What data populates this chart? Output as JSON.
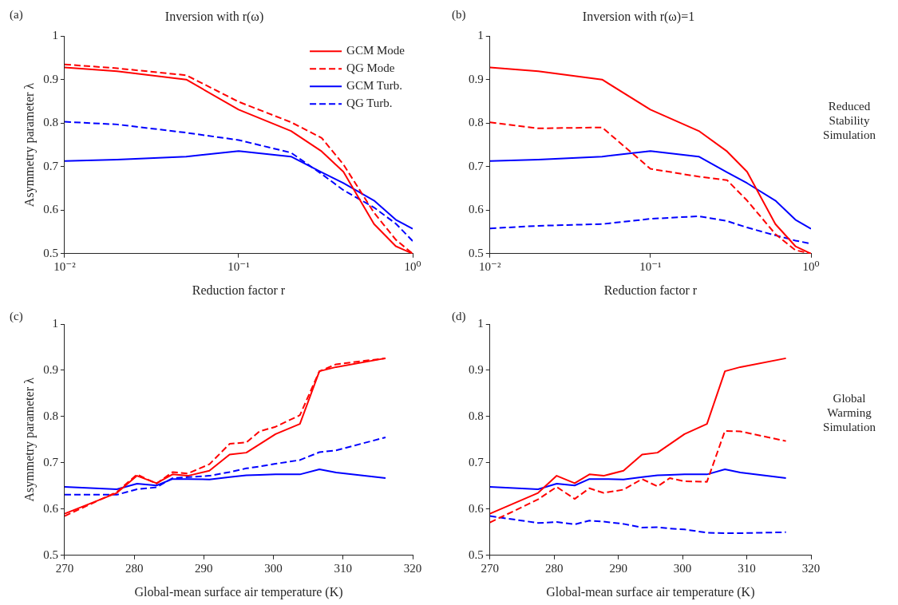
{
  "chart_data": [
    {
      "type": "line",
      "title": "Inversion with r(ω)",
      "xlabel": "Reduction factor r",
      "ylabel": "Asymmetry parameter λ",
      "log": "x",
      "legend": "top right",
      "annotations": [
        "(a)"
      ],
      "x": [
        0.01,
        0.02,
        0.05,
        0.1,
        0.2,
        0.3,
        0.4,
        0.6,
        0.8,
        1
      ],
      "xlim": [
        0.01,
        1
      ],
      "xticks": [
        {
          "value": 0.01,
          "label": "10⁻²"
        },
        {
          "value": 0.1,
          "label": "10⁻¹"
        },
        {
          "value": 1,
          "label": "10⁰"
        }
      ],
      "ylim": [
        0.5,
        1
      ],
      "yticks": [
        0.5,
        0.6,
        0.7,
        0.8,
        0.9,
        1
      ],
      "series": [
        {
          "name": "GCM Mode",
          "color": "#ff0000",
          "line_style": "solid",
          "values": [
            0.928,
            0.919,
            0.9,
            0.831,
            0.782,
            0.735,
            0.688,
            0.568,
            0.517,
            0.5
          ]
        },
        {
          "name": "QG Mode",
          "color": "#ff0000",
          "line_style": "dashed",
          "values": [
            0.935,
            0.926,
            0.91,
            0.849,
            0.802,
            0.766,
            0.705,
            0.594,
            0.532,
            0.5
          ]
        },
        {
          "name": "GCM Turb.",
          "color": "#0000ff",
          "line_style": "solid",
          "values": [
            0.713,
            0.716,
            0.723,
            0.736,
            0.723,
            0.687,
            0.662,
            0.622,
            0.578,
            0.557
          ]
        },
        {
          "name": "QG Turb.",
          "color": "#0000ff",
          "line_style": "dashed",
          "values": [
            0.803,
            0.797,
            0.778,
            0.761,
            0.732,
            0.683,
            0.646,
            0.606,
            0.569,
            0.529
          ]
        }
      ]
    },
    {
      "type": "line",
      "title": "Inversion with r(ω)=1",
      "xlabel": "Reduction factor r",
      "log": "x",
      "annotations": [
        "(b)",
        "Reduced Stability Simulation"
      ],
      "x": [
        0.01,
        0.02,
        0.05,
        0.1,
        0.2,
        0.3,
        0.4,
        0.6,
        0.8,
        1
      ],
      "xlim": [
        0.01,
        1
      ],
      "xticks": [
        {
          "value": 0.01,
          "label": "10⁻²"
        },
        {
          "value": 0.1,
          "label": "10⁻¹"
        },
        {
          "value": 1,
          "label": "10⁰"
        }
      ],
      "ylim": [
        0.5,
        1
      ],
      "yticks": [
        0.5,
        0.6,
        0.7,
        0.8,
        0.9,
        1
      ],
      "series": [
        {
          "color": "#ff0000",
          "line_style": "solid",
          "values": [
            0.928,
            0.919,
            0.9,
            0.831,
            0.782,
            0.735,
            0.688,
            0.568,
            0.517,
            0.5
          ]
        },
        {
          "color": "#ff0000",
          "line_style": "dashed",
          "values": [
            0.802,
            0.788,
            0.79,
            0.695,
            0.677,
            0.669,
            0.622,
            0.545,
            0.508,
            0.5
          ]
        },
        {
          "color": "#0000ff",
          "line_style": "solid",
          "values": [
            0.713,
            0.716,
            0.723,
            0.736,
            0.723,
            0.687,
            0.662,
            0.622,
            0.578,
            0.557
          ]
        },
        {
          "color": "#0000ff",
          "line_style": "dashed",
          "values": [
            0.558,
            0.564,
            0.568,
            0.58,
            0.586,
            0.575,
            0.56,
            0.542,
            0.53,
            0.523
          ]
        }
      ]
    },
    {
      "type": "line",
      "xlabel": "Global-mean surface air temperature (K)",
      "ylabel": "Asymmetry parameter λ",
      "annotations": [
        "(c)"
      ],
      "x": [
        270,
        277.5,
        280.4,
        283.2,
        285.5,
        287.7,
        290.8,
        293.7,
        296.1,
        298,
        300.3,
        303.8,
        306.6,
        309,
        316.1
      ],
      "xlim": [
        270,
        320
      ],
      "xticks": [
        270,
        280,
        290,
        300,
        310,
        320
      ],
      "ylim": [
        0.5,
        1
      ],
      "yticks": [
        0.5,
        0.6,
        0.7,
        0.8,
        0.9,
        1
      ],
      "series": [
        {
          "color": "#ff0000",
          "line_style": "solid",
          "values": [
            0.59,
            0.635,
            0.672,
            0.656,
            0.675,
            0.672,
            0.683,
            0.718,
            0.722,
            0.74,
            0.762,
            0.784,
            0.898,
            0.907,
            0.926
          ]
        },
        {
          "color": "#ff0000",
          "line_style": "dashed",
          "values": [
            0.585,
            0.637,
            0.675,
            0.655,
            0.68,
            0.677,
            0.697,
            0.741,
            0.744,
            0.768,
            0.778,
            0.803,
            0.898,
            0.913,
            0.926
          ]
        },
        {
          "color": "#0000ff",
          "line_style": "solid",
          "values": [
            0.648,
            0.643,
            0.655,
            0.651,
            0.665,
            0.665,
            0.664,
            0.669,
            0.673,
            0.674,
            0.675,
            0.675,
            0.686,
            0.679,
            0.667
          ]
        },
        {
          "color": "#0000ff",
          "line_style": "dashed",
          "values": [
            0.631,
            0.631,
            0.643,
            0.647,
            0.667,
            0.669,
            0.672,
            0.68,
            0.688,
            0.692,
            0.698,
            0.706,
            0.723,
            0.727,
            0.755
          ]
        }
      ]
    },
    {
      "type": "line",
      "xlabel": "Global-mean surface air temperature (K)",
      "annotations": [
        "(d)",
        "Global Warming Simulation"
      ],
      "x": [
        270,
        277.5,
        280.4,
        283.2,
        285.5,
        287.7,
        290.8,
        293.7,
        296.1,
        298,
        300.3,
        303.8,
        306.6,
        309,
        316.1
      ],
      "xlim": [
        270,
        320
      ],
      "xticks": [
        270,
        280,
        290,
        300,
        310,
        320
      ],
      "ylim": [
        0.5,
        1
      ],
      "yticks": [
        0.5,
        0.6,
        0.7,
        0.8,
        0.9,
        1
      ],
      "series": [
        {
          "color": "#ff0000",
          "line_style": "solid",
          "values": [
            0.59,
            0.635,
            0.672,
            0.656,
            0.675,
            0.672,
            0.683,
            0.718,
            0.722,
            0.74,
            0.762,
            0.784,
            0.898,
            0.907,
            0.926
          ]
        },
        {
          "color": "#ff0000",
          "line_style": "dashed",
          "values": [
            0.571,
            0.621,
            0.648,
            0.622,
            0.645,
            0.635,
            0.642,
            0.665,
            0.649,
            0.667,
            0.66,
            0.659,
            0.769,
            0.768,
            0.747
          ]
        },
        {
          "color": "#0000ff",
          "line_style": "solid",
          "values": [
            0.648,
            0.643,
            0.655,
            0.651,
            0.665,
            0.665,
            0.664,
            0.669,
            0.673,
            0.674,
            0.675,
            0.675,
            0.686,
            0.679,
            0.667
          ]
        },
        {
          "color": "#0000ff",
          "line_style": "dashed",
          "values": [
            0.585,
            0.57,
            0.572,
            0.567,
            0.575,
            0.573,
            0.568,
            0.56,
            0.561,
            0.558,
            0.556,
            0.549,
            0.548,
            0.548,
            0.55
          ]
        }
      ]
    }
  ]
}
